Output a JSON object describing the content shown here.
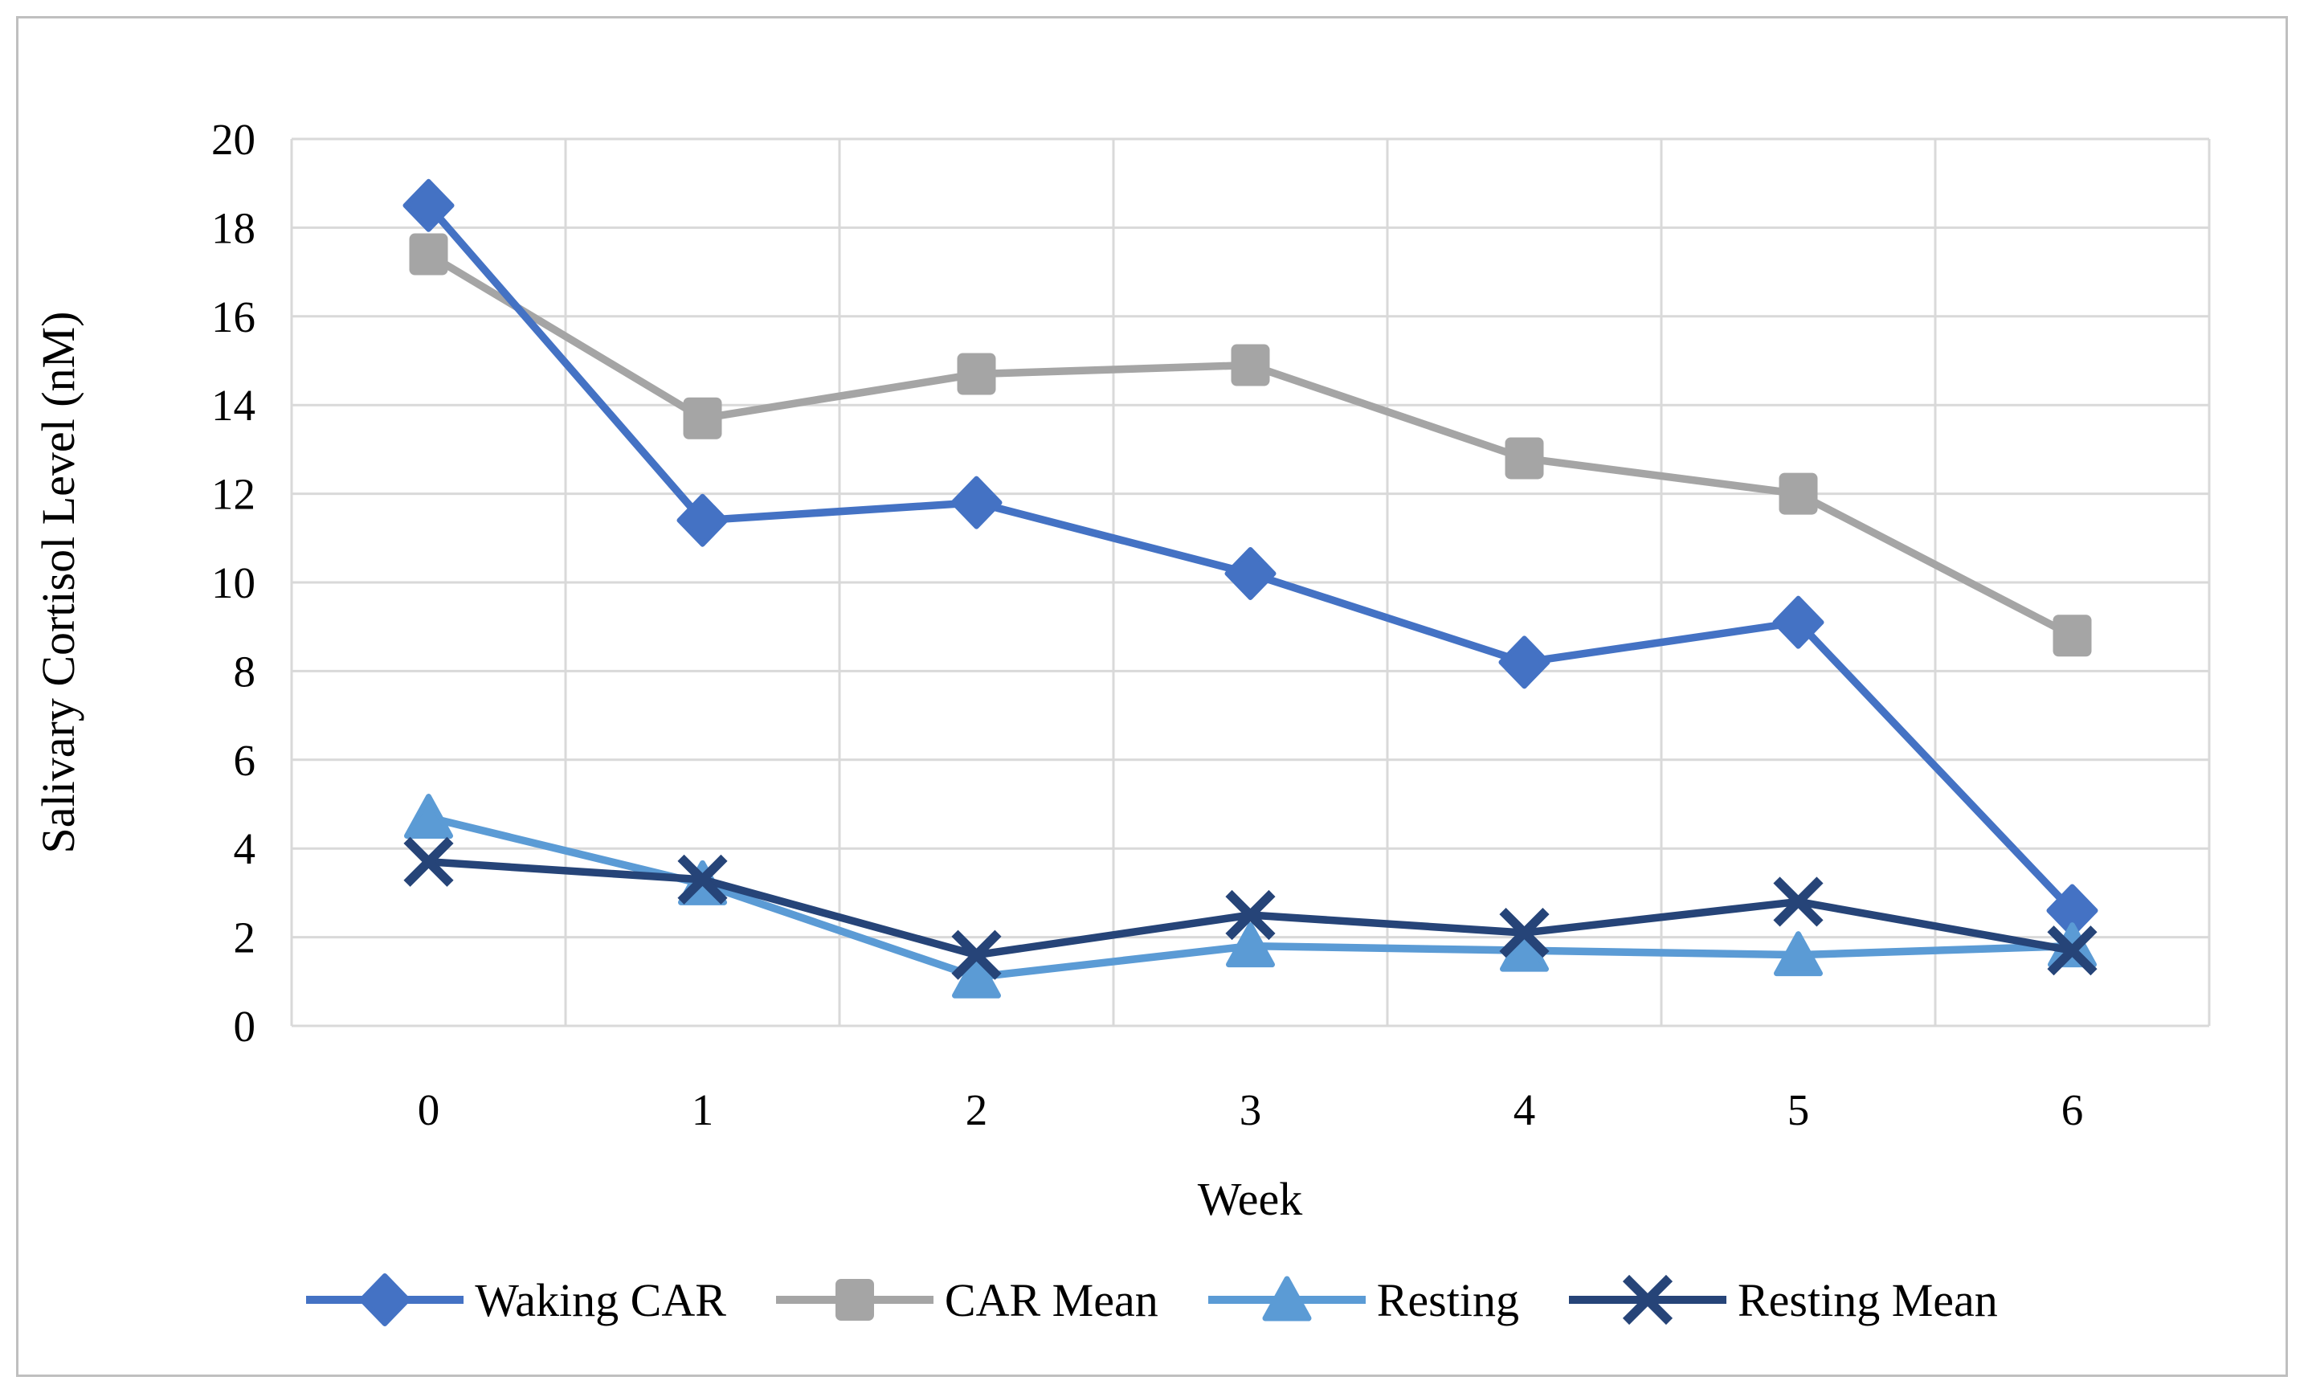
{
  "figure": {
    "background_color": "#FFFFFF",
    "border_color": "#BFBFBF"
  },
  "chart_data": {
    "type": "line",
    "title": "",
    "xlabel": "Week",
    "ylabel": "Salivary Cortisol Level (nM)",
    "categories": [
      "0",
      "1",
      "2",
      "3",
      "4",
      "5",
      "6"
    ],
    "yticks": [
      "0",
      "2",
      "4",
      "6",
      "8",
      "10",
      "12",
      "14",
      "16",
      "18",
      "20"
    ],
    "ylim": [
      0,
      20
    ],
    "ytick_step": 2,
    "grid": true,
    "gridline_color": "#D9D9D9",
    "legend_position": "bottom",
    "draw_order": [
      1,
      0,
      2,
      3
    ],
    "series": [
      {
        "name": "Waking CAR",
        "marker": "diamond",
        "color": "#4472C4",
        "values": [
          18.5,
          11.4,
          11.8,
          10.2,
          8.2,
          9.1,
          2.6
        ]
      },
      {
        "name": "CAR Mean",
        "marker": "square",
        "color": "#A5A5A5",
        "values": [
          17.4,
          13.7,
          14.7,
          14.9,
          12.8,
          12.0,
          8.8
        ]
      },
      {
        "name": "Resting",
        "marker": "triangle",
        "color": "#5B9BD5",
        "values": [
          4.7,
          3.2,
          1.1,
          1.8,
          1.7,
          1.6,
          1.8
        ]
      },
      {
        "name": "Resting Mean",
        "marker": "x",
        "color": "#264478",
        "values": [
          3.7,
          3.3,
          1.6,
          2.5,
          2.1,
          2.8,
          1.7
        ]
      }
    ]
  }
}
